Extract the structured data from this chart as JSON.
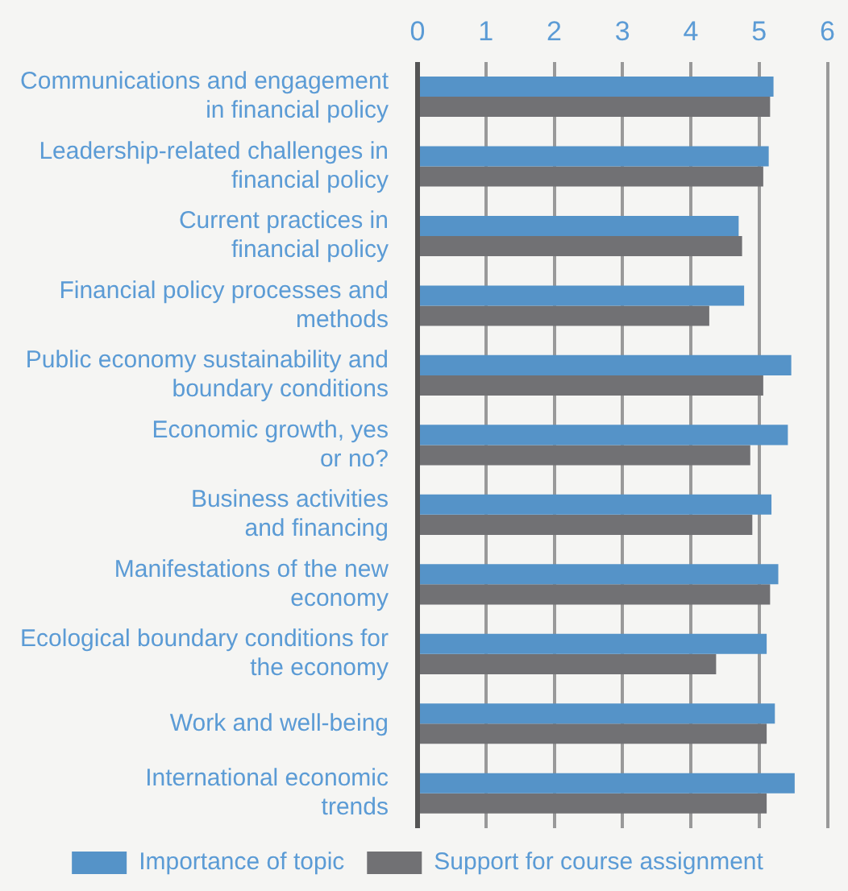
{
  "chart_data": {
    "type": "bar",
    "orientation": "horizontal",
    "categories": [
      "Communications and engagement in financial policy",
      "Leadership-related challenges in financial policy",
      "Current practices in financial policy",
      "Financial policy processes and methods",
      "Public economy sustainability and boundary conditions",
      "Economic growth, yes or no?",
      "Business activities and financing",
      "Manifestations of the new economy",
      "Ecological boundary conditions for the economy",
      "Work and well-being",
      "International economic trends"
    ],
    "series": [
      {
        "name": "Importance of topic",
        "color": "#5593c8",
        "values": [
          5.21,
          5.14,
          4.7,
          4.78,
          5.47,
          5.42,
          5.18,
          5.28,
          5.11,
          5.23,
          5.52
        ]
      },
      {
        "name": "Support for course assignment",
        "color": "#717174",
        "values": [
          5.16,
          5.06,
          4.75,
          4.27,
          5.06,
          4.87,
          4.9,
          5.16,
          4.37,
          5.11,
          5.11
        ]
      }
    ],
    "xlim": [
      0,
      6
    ],
    "xticks": [
      0,
      1,
      2,
      3,
      4,
      5,
      6
    ],
    "grid": "x",
    "legend": "bottom"
  }
}
